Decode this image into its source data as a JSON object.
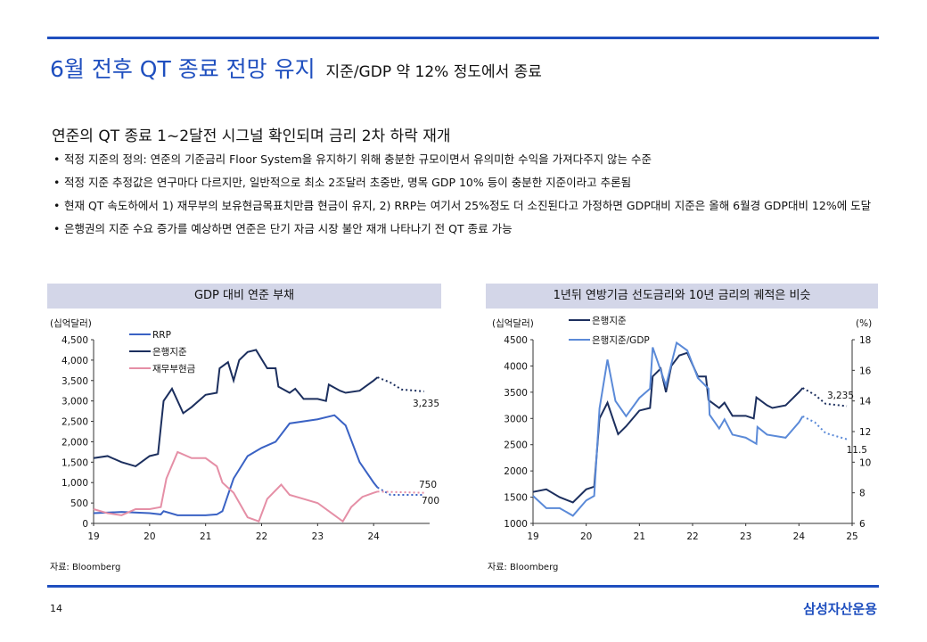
{
  "header": {
    "title": "6월 전후 QT 종료 전망 유지",
    "subtitle": "지준/GDP 약 12% 정도에서 종료"
  },
  "subhead": "연준의 QT 종료 1~2달전 시그널 확인되며 금리 2차 하락 재개",
  "bullets": [
    "적정 지준의 정의: 연준의 기준금리 Floor System을 유지하기 위해 충분한 규모이면서 유의미한 수익을 가져다주지 않는 수준",
    "적정 지준 추정값은 연구마다 다르지만, 일반적으로 최소 2조달러 초중반, 명목 GDP 10% 등이 충분한 지준이라고 추론됨",
    "현재 QT 속도하에서 1) 재무부의 보유현금목표치만큼  현금이 유지, 2) RRP는 여기서 25%정도 더 소진된다고 가정하면 GDP대비 지준은 올해 6월경 GDP대비 12%에 도달",
    "은행권의 지준 수요 증가를 예상하면 연준은 단기 자금 시장 불안 재개 나타나기 전 QT 종료 가능"
  ],
  "footer": {
    "page": "14",
    "brand": "삼성자산운용"
  },
  "chart_data": [
    {
      "type": "line",
      "title": "GDP 대비 연준 부채",
      "ylabel": "(십억달러)",
      "source": "자료: Bloomberg",
      "xticks": [
        "19",
        "20",
        "21",
        "22",
        "23",
        "24"
      ],
      "xlim": [
        19,
        25
      ],
      "yticks": [
        "0",
        "500",
        "1,000",
        "1,500",
        "2,000",
        "2,500",
        "3,000",
        "3,500",
        "4,000",
        "4,500"
      ],
      "ylim": [
        0,
        4500
      ],
      "annotations": [
        "3,235",
        "750",
        "700"
      ],
      "series": [
        {
          "name": "RRP",
          "color": "#3a62c4",
          "x": [
            19,
            19.5,
            20,
            20.2,
            20.25,
            20.5,
            21,
            21.2,
            21.3,
            21.5,
            21.75,
            22,
            22.25,
            22.5,
            23,
            23.3,
            23.5,
            23.75,
            24,
            24.07
          ],
          "y": [
            250,
            280,
            250,
            220,
            300,
            200,
            200,
            220,
            300,
            1100,
            1650,
            1850,
            2000,
            2450,
            2550,
            2650,
            2400,
            1500,
            1000,
            880
          ],
          "forecast_x": [
            24.07,
            24.3,
            24.9
          ],
          "forecast_y": [
            880,
            700,
            700
          ]
        },
        {
          "name": "은행지준",
          "color": "#1c2f5e",
          "x": [
            19,
            19.25,
            19.5,
            19.75,
            20,
            20.15,
            20.25,
            20.4,
            20.6,
            20.75,
            21,
            21.2,
            21.25,
            21.4,
            21.5,
            21.6,
            21.75,
            21.9,
            22.1,
            22.25,
            22.3,
            22.5,
            22.6,
            22.75,
            23,
            23.15,
            23.2,
            23.4,
            23.5,
            23.75,
            24,
            24.07
          ],
          "y": [
            1600,
            1650,
            1500,
            1400,
            1650,
            1700,
            3000,
            3300,
            2700,
            2850,
            3150,
            3200,
            3800,
            3950,
            3500,
            4000,
            4200,
            4250,
            3800,
            3800,
            3350,
            3200,
            3300,
            3050,
            3050,
            3000,
            3400,
            3250,
            3200,
            3250,
            3500,
            3580
          ],
          "forecast_x": [
            24.07,
            24.3,
            24.5,
            24.9
          ],
          "forecast_y": [
            3580,
            3450,
            3280,
            3235
          ]
        },
        {
          "name": "재무부현금",
          "color": "#e58fa6",
          "x": [
            19,
            19.25,
            19.5,
            19.75,
            20,
            20.2,
            20.3,
            20.5,
            20.75,
            21,
            21.2,
            21.3,
            21.5,
            21.75,
            21.95,
            22.1,
            22.35,
            22.5,
            22.75,
            23,
            23.3,
            23.45,
            23.6,
            23.8,
            24,
            24.07
          ],
          "y": [
            350,
            250,
            200,
            350,
            350,
            400,
            1100,
            1750,
            1600,
            1600,
            1400,
            1000,
            750,
            150,
            50,
            600,
            950,
            700,
            600,
            500,
            200,
            50,
            400,
            650,
            750,
            780
          ],
          "forecast_x": [
            24.07,
            24.9
          ],
          "forecast_y": [
            780,
            750
          ]
        }
      ]
    },
    {
      "type": "line",
      "title": "1년뒤 연방기금 선도금리와 10년 금리의 궤적은 비슷",
      "ylabel": "(십억달러)",
      "y2label": "(%)",
      "source": "자료: Bloomberg",
      "xticks": [
        "19",
        "20",
        "21",
        "22",
        "23",
        "24",
        "25"
      ],
      "xlim": [
        19,
        25
      ],
      "yticks": [
        "1000",
        "1500",
        "2000",
        "2500",
        "3000",
        "3500",
        "4000",
        "4500"
      ],
      "ylim": [
        1000,
        4500
      ],
      "y2ticks": [
        "6",
        "8",
        "10",
        "12",
        "14",
        "16",
        "18"
      ],
      "y2lim": [
        6,
        18
      ],
      "annotations": [
        "3,235",
        "11.5"
      ],
      "series": [
        {
          "name": "은행지준",
          "color": "#1c2f5e",
          "axis": "left",
          "x": [
            19,
            19.25,
            19.5,
            19.75,
            20,
            20.15,
            20.25,
            20.4,
            20.6,
            20.75,
            21,
            21.2,
            21.25,
            21.4,
            21.5,
            21.6,
            21.75,
            21.9,
            22.1,
            22.25,
            22.3,
            22.5,
            22.6,
            22.75,
            23,
            23.15,
            23.2,
            23.4,
            23.5,
            23.75,
            24,
            24.07
          ],
          "y": [
            1600,
            1650,
            1500,
            1400,
            1650,
            1700,
            3000,
            3300,
            2700,
            2850,
            3150,
            3200,
            3800,
            3950,
            3500,
            4000,
            4200,
            4250,
            3800,
            3800,
            3350,
            3200,
            3300,
            3050,
            3050,
            3000,
            3400,
            3250,
            3200,
            3250,
            3500,
            3580
          ],
          "forecast_x": [
            24.07,
            24.3,
            24.5,
            24.9
          ],
          "forecast_y": [
            3580,
            3450,
            3280,
            3235
          ]
        },
        {
          "name": "은행지준/GDP",
          "color": "#5b8ad8",
          "axis": "right",
          "x": [
            19,
            19.25,
            19.5,
            19.75,
            20,
            20.15,
            20.25,
            20.4,
            20.55,
            20.75,
            21,
            21.2,
            21.25,
            21.5,
            21.7,
            21.9,
            22.1,
            22.3,
            22.32,
            22.5,
            22.6,
            22.75,
            23,
            23.2,
            23.22,
            23.4,
            23.75,
            24,
            24.07
          ],
          "y": [
            7.8,
            7,
            7,
            6.5,
            7.5,
            7.8,
            13.5,
            16.7,
            14,
            13,
            14.2,
            14.8,
            17.5,
            15,
            17.8,
            17.3,
            15.5,
            14.8,
            13.1,
            12.2,
            12.8,
            11.8,
            11.6,
            11.2,
            12.3,
            11.8,
            11.6,
            12.6,
            13
          ],
          "forecast_x": [
            24.07,
            24.3,
            24.5,
            24.9
          ],
          "forecast_y": [
            13,
            12.6,
            11.9,
            11.5
          ]
        }
      ]
    }
  ]
}
